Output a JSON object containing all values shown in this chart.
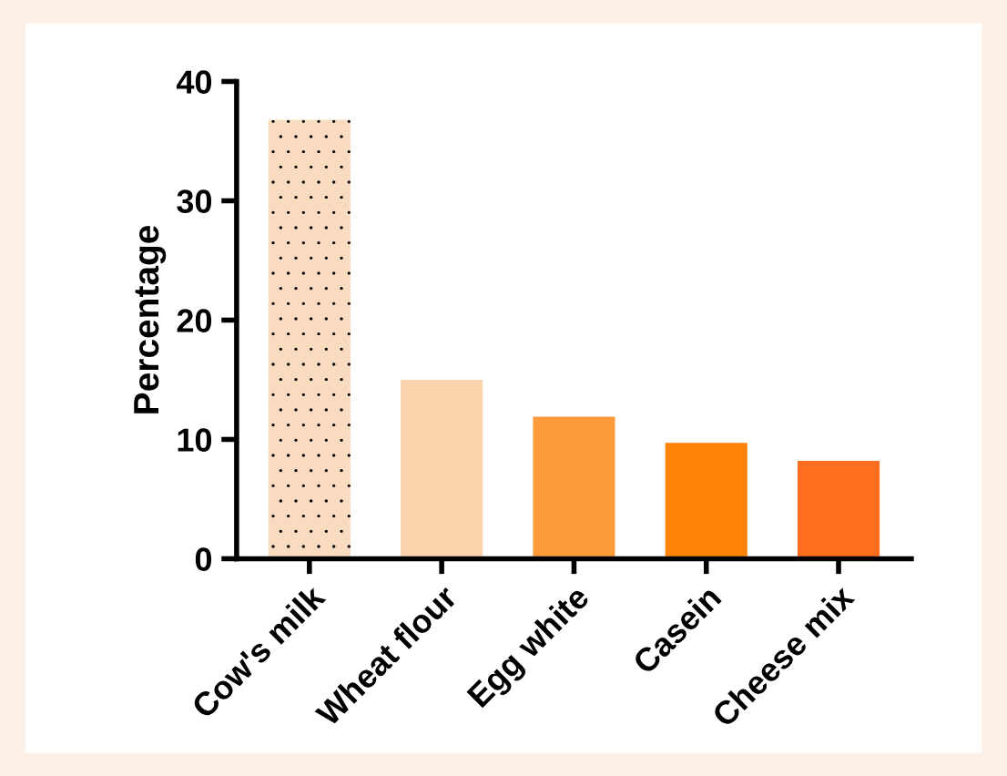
{
  "chart_data": {
    "type": "bar",
    "ylabel": "Percentage",
    "categories": [
      "Cow's milk",
      "Wheat flour",
      "Egg white",
      "Casein",
      "Cheese mix"
    ],
    "values": [
      36.8,
      15.0,
      11.9,
      9.7,
      8.2
    ],
    "colors": [
      "#f9dcc0",
      "#fbd3ad",
      "#fd9b3c",
      "#ff8307",
      "#ff6d1f"
    ],
    "ylim": [
      0,
      40
    ],
    "yticks": [
      0,
      10,
      20,
      30,
      40
    ],
    "grid": false,
    "legend": false
  }
}
